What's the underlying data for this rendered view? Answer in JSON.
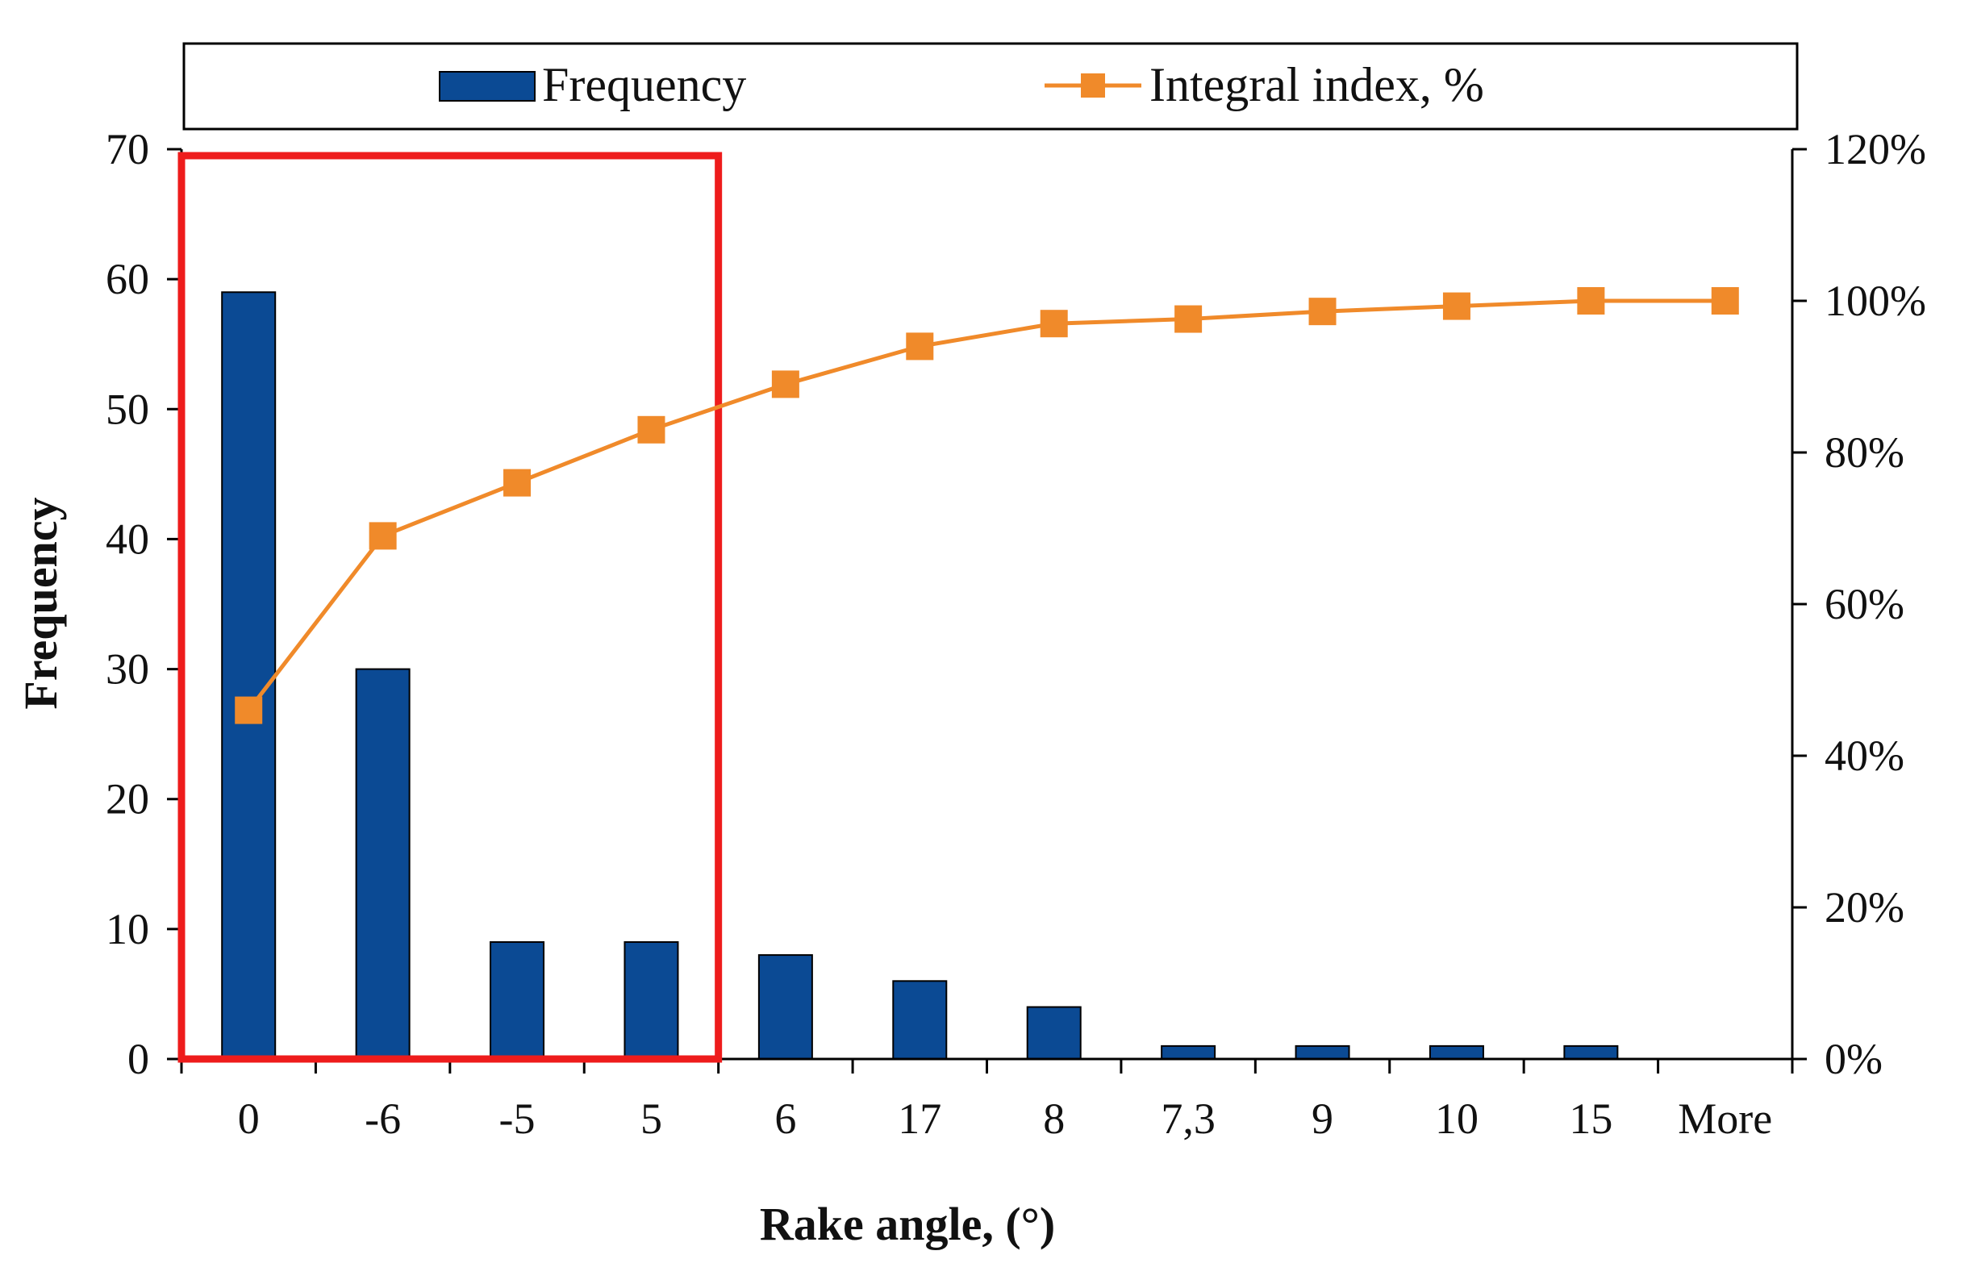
{
  "chart_data": {
    "type": "bar",
    "categories": [
      "0",
      "-6",
      "-5",
      "5",
      "6",
      "17",
      "8",
      "7,3",
      "9",
      "10",
      "15",
      "More"
    ],
    "title": "",
    "xlabel": "Rake angle, (°)",
    "ylabel": "Frequency",
    "ylim": [
      0,
      70
    ],
    "y_ticks": [
      "0",
      "10",
      "20",
      "30",
      "40",
      "50",
      "60",
      "70"
    ],
    "y2lim": [
      0,
      120
    ],
    "y2_ticks": [
      "0%",
      "20%",
      "40%",
      "60%",
      "80%",
      "100%",
      "120%"
    ],
    "grid": false,
    "legend_position": "top",
    "series": [
      {
        "name": "Frequency",
        "type": "bar",
        "axis": "left",
        "color": "#0b4a94",
        "values": [
          59,
          30,
          9,
          9,
          8,
          6,
          4,
          1,
          1,
          1,
          1,
          0
        ]
      },
      {
        "name": "Integral index, %",
        "type": "line",
        "axis": "right",
        "color": "#f08a2a",
        "marker": "square",
        "values": [
          46,
          69,
          76,
          83,
          89,
          94,
          97,
          97.6,
          98.6,
          99.3,
          100,
          100
        ]
      }
    ],
    "annotations": [
      {
        "shape": "rectangle",
        "color": "#ee1c1c",
        "spans_categories": [
          "0",
          "5"
        ],
        "y_range": [
          0,
          70
        ]
      }
    ]
  }
}
